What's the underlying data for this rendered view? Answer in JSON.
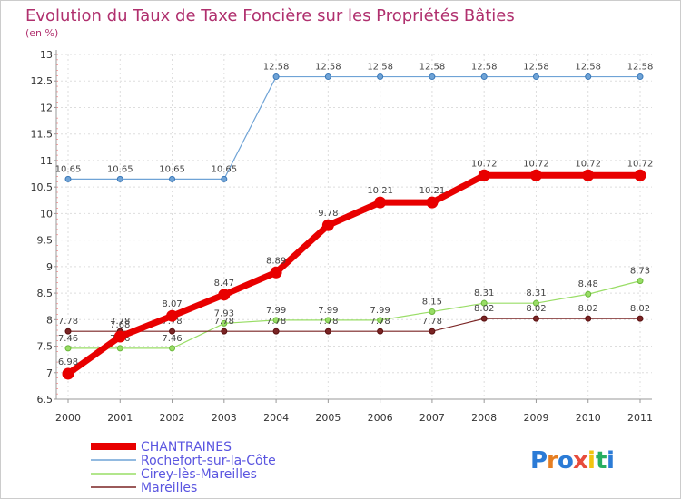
{
  "chart_data": {
    "type": "line",
    "title": "Evolution du Taux de Taxe Foncière sur les Propriétés Bâties",
    "subtitle": "(en %)",
    "x": [
      "2000",
      "2001",
      "2002",
      "2003",
      "2004",
      "2005",
      "2006",
      "2007",
      "2008",
      "2009",
      "2010",
      "2011"
    ],
    "ylim": [
      6.5,
      13
    ],
    "yticks": [
      "6.5",
      "7",
      "7.5",
      "8",
      "8.5",
      "9",
      "9.5",
      "10",
      "10.5",
      "11",
      "11.5",
      "12",
      "12.5",
      "13"
    ],
    "series": [
      {
        "name": "Rochefort-sur-la-Côte",
        "color": "#6fa3d6",
        "values": [
          10.65,
          10.65,
          10.65,
          10.65,
          12.58,
          12.58,
          12.58,
          12.58,
          12.58,
          12.58,
          12.58,
          12.58
        ],
        "labels": [
          "10.65",
          "10.65",
          "10.65",
          "10.65",
          "12.58",
          "12.58",
          "12.58",
          "12.58",
          "12.58",
          "12.58",
          "12.58",
          "12.58"
        ]
      },
      {
        "name": "Cirey-lès-Mareilles",
        "color": "#99dd66",
        "values": [
          7.46,
          7.46,
          7.46,
          7.93,
          7.99,
          7.99,
          7.99,
          8.15,
          8.31,
          8.31,
          8.48,
          8.73
        ],
        "labels": [
          "7.46",
          "7.46",
          "7.46",
          "7.93",
          "7.99",
          "7.99",
          "7.99",
          "8.15",
          "8.31",
          "8.31",
          "8.48",
          "8.73"
        ]
      },
      {
        "name": "Mareilles",
        "color": "#7a2424",
        "values": [
          7.78,
          7.78,
          7.78,
          7.78,
          7.78,
          7.78,
          7.78,
          7.78,
          8.02,
          8.02,
          8.02,
          8.02
        ],
        "labels": [
          "7.78",
          "7.78",
          "7.78",
          "7.78",
          "7.78",
          "7.78",
          "7.78",
          "7.78",
          "8.02",
          "8.02",
          "8.02",
          "8.02"
        ]
      },
      {
        "name": "CHANTRAINES",
        "color": "#e80000",
        "values": [
          6.98,
          7.68,
          8.07,
          8.47,
          8.89,
          9.78,
          10.21,
          10.21,
          10.72,
          10.72,
          10.72,
          10.72
        ],
        "labels": [
          "6.98",
          "7.68",
          "8.07",
          "8.47",
          "8.89",
          "9.78",
          "10.21",
          "10.21",
          "10.72",
          "10.72",
          "10.72",
          "10.72"
        ]
      }
    ],
    "legend": [
      "CHANTRAINES",
      "Rochefort-sur-la-Côte",
      "Cirey-lès-Mareilles",
      "Mareilles"
    ],
    "legend_position": "bottom-left"
  },
  "brand": {
    "name": "Proxiti",
    "letters": [
      "P",
      "r",
      "o",
      "x",
      "i",
      "t",
      "i"
    ],
    "colors": [
      "#2b7bd6",
      "#e67e22",
      "#2b7bd6",
      "#e74c3c",
      "#f1c40f",
      "#27ae60",
      "#2b7bd6"
    ]
  }
}
